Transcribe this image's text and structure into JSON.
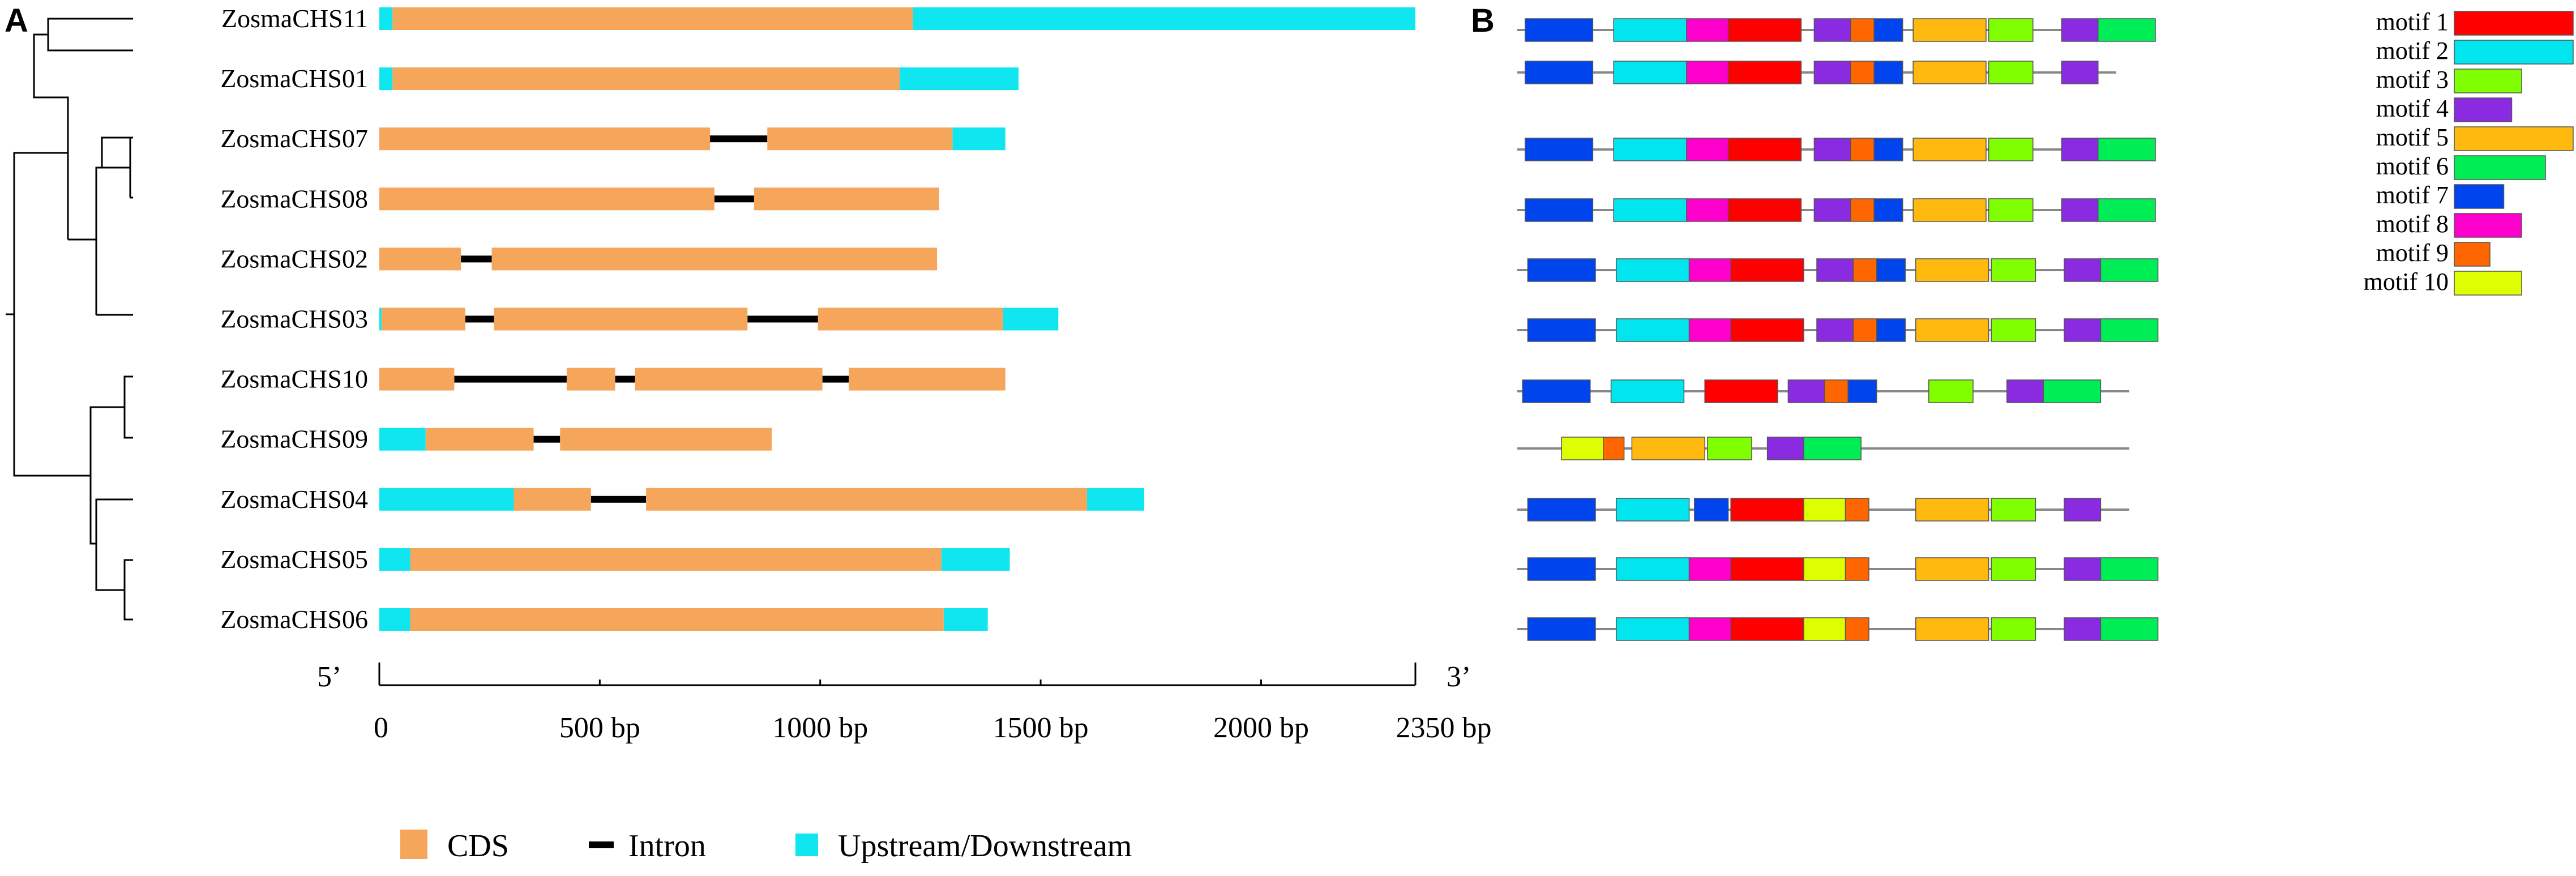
{
  "panel_a": {
    "letter": "A",
    "genes": [
      {
        "name": "ZosmaCHS11",
        "upstream": [
          0,
          30
        ],
        "cds": [
          [
            30,
            1210
          ]
        ],
        "downstream": [
          1210,
          2350
        ]
      },
      {
        "name": "ZosmaCHS01",
        "upstream": [
          0,
          30
        ],
        "cds": [
          [
            30,
            1180
          ]
        ],
        "downstream": [
          1180,
          1450
        ]
      },
      {
        "name": "ZosmaCHS07",
        "upstream": null,
        "cds": [
          [
            0,
            750
          ],
          [
            880,
            1300
          ]
        ],
        "downstream": [
          1300,
          1420
        ]
      },
      {
        "name": "ZosmaCHS08",
        "upstream": null,
        "cds": [
          [
            0,
            760
          ],
          [
            850,
            1270
          ]
        ],
        "downstream": null
      },
      {
        "name": "ZosmaCHS02",
        "upstream": null,
        "cds": [
          [
            0,
            185
          ],
          [
            255,
            1265
          ]
        ],
        "downstream": null
      },
      {
        "name": "ZosmaCHS03",
        "upstream": [
          0,
          5
        ],
        "cds": [
          [
            5,
            195
          ],
          [
            260,
            835
          ],
          [
            995,
            1415
          ]
        ],
        "downstream": [
          1415,
          1540
        ]
      },
      {
        "name": "ZosmaCHS10",
        "upstream": null,
        "cds": [
          [
            0,
            170
          ],
          [
            425,
            535
          ],
          [
            580,
            1005
          ],
          [
            1065,
            1420
          ]
        ],
        "downstream": null
      },
      {
        "name": "ZosmaCHS09",
        "upstream": [
          0,
          105
        ],
        "cds": [
          [
            105,
            350
          ],
          [
            410,
            890
          ]
        ],
        "downstream": null
      },
      {
        "name": "ZosmaCHS04",
        "upstream": [
          0,
          305
        ],
        "cds": [
          [
            305,
            480
          ],
          [
            605,
            1605
          ]
        ],
        "downstream": [
          1605,
          1735
        ]
      },
      {
        "name": "ZosmaCHS05",
        "upstream": [
          0,
          70
        ],
        "cds": [
          [
            70,
            1275
          ]
        ],
        "downstream": [
          1275,
          1430
        ]
      },
      {
        "name": "ZosmaCHS06",
        "upstream": [
          0,
          70
        ],
        "cds": [
          [
            70,
            1280
          ]
        ],
        "downstream": [
          1280,
          1380
        ]
      }
    ],
    "axis": {
      "five_prime": "5’",
      "three_prime": "3’",
      "max_bp": 2350,
      "ticks": [
        {
          "value": 0,
          "label": "0"
        },
        {
          "value": 500,
          "label": "500 bp"
        },
        {
          "value": 1000,
          "label": "1000 bp"
        },
        {
          "value": 1500,
          "label": "1500 bp"
        },
        {
          "value": 2000,
          "label": "2000 bp"
        },
        {
          "value": 2350,
          "label": "2350 bp"
        }
      ]
    },
    "legend": [
      {
        "key": "cds",
        "label": "CDS"
      },
      {
        "key": "intron",
        "label": "Intron"
      },
      {
        "key": "utr",
        "label": "Upstream/Downstream"
      }
    ]
  },
  "panel_b": {
    "letter": "B",
    "motifs": [
      {
        "id": 1,
        "label": "motif 1",
        "color": "#ff0000",
        "len": 6.0
      },
      {
        "id": 2,
        "label": "motif 2",
        "color": "#00e5ee",
        "len": 6.0
      },
      {
        "id": 3,
        "label": "motif 3",
        "color": "#7fff00",
        "len": 3.4
      },
      {
        "id": 4,
        "label": "motif 4",
        "color": "#8a2be2",
        "len": 2.9
      },
      {
        "id": 5,
        "label": "motif 5",
        "color": "#ffb90f",
        "len": 6.0
      },
      {
        "id": 6,
        "label": "motif 6",
        "color": "#00ee55",
        "len": 4.6
      },
      {
        "id": 7,
        "label": "motif 7",
        "color": "#0044ee",
        "len": 2.5
      },
      {
        "id": 8,
        "label": "motif 8",
        "color": "#ff00cc",
        "len": 3.4
      },
      {
        "id": 9,
        "label": "motif 9",
        "color": "#ff6600",
        "len": 1.8
      },
      {
        "id": 10,
        "label": "motif 10",
        "color": "#ddff00",
        "len": 3.4
      }
    ],
    "rows": [
      {
        "gene": "ZosmaCHS11",
        "len": 470,
        "blocks": [
          [
            7,
            3,
            29
          ],
          [
            2,
            37,
            65
          ],
          [
            8,
            65,
            81
          ],
          [
            1,
            81,
            109
          ],
          [
            4,
            114,
            128
          ],
          [
            9,
            128,
            137
          ],
          [
            7,
            137,
            148
          ],
          [
            5,
            152,
            180
          ],
          [
            3,
            181,
            198
          ],
          [
            4,
            209,
            223
          ],
          [
            6,
            223,
            245
          ]
        ]
      },
      {
        "gene": "ZosmaCHS01",
        "len": 460,
        "blocks": [
          [
            7,
            3,
            29
          ],
          [
            2,
            37,
            65
          ],
          [
            8,
            65,
            81
          ],
          [
            1,
            81,
            109
          ],
          [
            4,
            114,
            128
          ],
          [
            9,
            128,
            137
          ],
          [
            7,
            137,
            148
          ],
          [
            5,
            152,
            180
          ],
          [
            3,
            181,
            198
          ],
          [
            4,
            209,
            223
          ]
        ]
      },
      {
        "gene": "ZosmaCHS07",
        "len": 470,
        "blocks": [
          [
            7,
            3,
            29
          ],
          [
            2,
            37,
            65
          ],
          [
            8,
            65,
            81
          ],
          [
            1,
            81,
            109
          ],
          [
            4,
            114,
            128
          ],
          [
            9,
            128,
            137
          ],
          [
            7,
            137,
            148
          ],
          [
            5,
            152,
            180
          ],
          [
            3,
            181,
            198
          ],
          [
            4,
            209,
            223
          ],
          [
            6,
            223,
            245
          ]
        ]
      },
      {
        "gene": "ZosmaCHS08",
        "len": 470,
        "blocks": [
          [
            7,
            3,
            29
          ],
          [
            2,
            37,
            65
          ],
          [
            8,
            65,
            81
          ],
          [
            1,
            81,
            109
          ],
          [
            4,
            114,
            128
          ],
          [
            9,
            128,
            137
          ],
          [
            7,
            137,
            148
          ],
          [
            5,
            152,
            180
          ],
          [
            3,
            181,
            198
          ],
          [
            4,
            209,
            223
          ],
          [
            6,
            223,
            245
          ]
        ]
      },
      {
        "gene": "ZosmaCHS02",
        "len": 470,
        "blocks": [
          [
            7,
            4,
            30
          ],
          [
            2,
            38,
            66
          ],
          [
            8,
            66,
            82
          ],
          [
            1,
            82,
            110
          ],
          [
            4,
            115,
            129
          ],
          [
            9,
            129,
            138
          ],
          [
            7,
            138,
            149
          ],
          [
            5,
            153,
            181
          ],
          [
            3,
            182,
            199
          ],
          [
            4,
            210,
            224
          ],
          [
            6,
            224,
            246
          ]
        ]
      },
      {
        "gene": "ZosmaCHS03",
        "len": 470,
        "blocks": [
          [
            7,
            4,
            30
          ],
          [
            2,
            38,
            66
          ],
          [
            8,
            66,
            82
          ],
          [
            1,
            82,
            110
          ],
          [
            4,
            115,
            129
          ],
          [
            9,
            129,
            138
          ],
          [
            7,
            138,
            149
          ],
          [
            5,
            153,
            181
          ],
          [
            3,
            182,
            199
          ],
          [
            4,
            210,
            224
          ],
          [
            6,
            224,
            246
          ]
        ]
      },
      {
        "gene": "ZosmaCHS10",
        "len": 470,
        "blocks": [
          [
            7,
            2,
            28
          ],
          [
            2,
            36,
            64
          ],
          [
            1,
            72,
            100
          ],
          [
            4,
            104,
            118
          ],
          [
            9,
            118,
            127
          ],
          [
            7,
            127,
            138
          ],
          [
            3,
            158,
            175
          ],
          [
            4,
            188,
            202
          ],
          [
            6,
            202,
            224
          ]
        ]
      },
      {
        "gene": "ZosmaCHS09",
        "len": 470,
        "blocks": [
          [
            10,
            17,
            33
          ],
          [
            9,
            33,
            41
          ],
          [
            5,
            44,
            72
          ],
          [
            3,
            73,
            90
          ],
          [
            4,
            96,
            110
          ],
          [
            6,
            110,
            132
          ]
        ]
      },
      {
        "gene": "ZosmaCHS04",
        "len": 470,
        "blocks": [
          [
            7,
            4,
            30
          ],
          [
            2,
            38,
            66
          ],
          [
            7,
            68,
            81
          ],
          [
            1,
            82,
            110
          ],
          [
            10,
            110,
            126
          ],
          [
            9,
            126,
            135
          ],
          [
            5,
            153,
            181
          ],
          [
            3,
            182,
            199
          ],
          [
            4,
            210,
            224
          ]
        ]
      },
      {
        "gene": "ZosmaCHS05",
        "len": 470,
        "blocks": [
          [
            7,
            4,
            30
          ],
          [
            2,
            38,
            66
          ],
          [
            8,
            66,
            82
          ],
          [
            1,
            82,
            110
          ],
          [
            10,
            110,
            126
          ],
          [
            9,
            126,
            135
          ],
          [
            5,
            153,
            181
          ],
          [
            3,
            182,
            199
          ],
          [
            4,
            210,
            224
          ],
          [
            6,
            224,
            246
          ]
        ]
      },
      {
        "gene": "ZosmaCHS06",
        "len": 470,
        "blocks": [
          [
            7,
            4,
            30
          ],
          [
            2,
            38,
            66
          ],
          [
            8,
            66,
            82
          ],
          [
            1,
            82,
            110
          ],
          [
            10,
            110,
            126
          ],
          [
            9,
            126,
            135
          ],
          [
            5,
            153,
            181
          ],
          [
            3,
            182,
            199
          ],
          [
            4,
            210,
            224
          ],
          [
            6,
            224,
            246
          ]
        ]
      }
    ]
  },
  "colors": {
    "cds": "#f5a65b",
    "utr": "#0fe6f0",
    "intron": "#000000",
    "tree": "#000000",
    "axis": "#000000",
    "baseline": "#888888"
  }
}
